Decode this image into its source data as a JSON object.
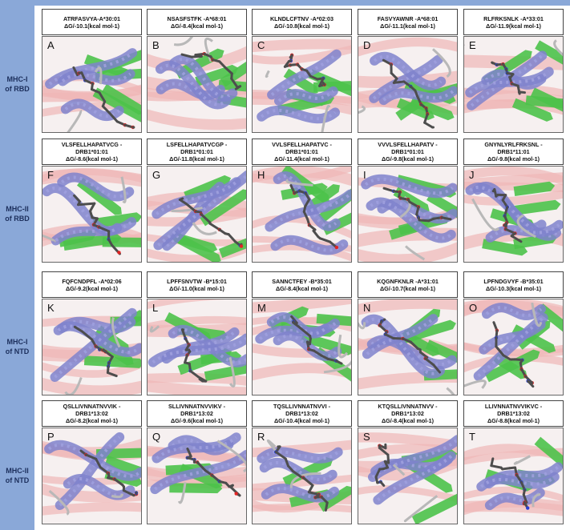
{
  "rows": [
    {
      "label": "MHC-I\nof RBD",
      "panels": [
        {
          "letter": "A",
          "lines": [
            "ATRFASVYA-A*30:01",
            "ΔG/-10.1(kcal  mol-1)"
          ]
        },
        {
          "letter": "B",
          "lines": [
            "NSASFSTFK -A*68:01",
            "ΔG/-8.4(kcal  mol-1)"
          ]
        },
        {
          "letter": "C",
          "lines": [
            "KLNDLCFTNV -A*02:03",
            "ΔG/-10.8(kcal  mol-1)"
          ]
        },
        {
          "letter": "D",
          "lines": [
            "FASVYAWNR -A*68:01",
            "ΔG/-11.1(kcal  mol-1)"
          ]
        },
        {
          "letter": "E",
          "lines": [
            "RLFRKSNLK -A*33:01",
            "ΔG/-11.9(kcal  mol-1)"
          ]
        }
      ]
    },
    {
      "label": "MHC-II\nof RBD",
      "panels": [
        {
          "letter": "F",
          "lines": [
            "VLSFELLHAPATVCG  -",
            "DRB1*01:01",
            "ΔG/-8.6(kcal  mol-1)"
          ]
        },
        {
          "letter": "G",
          "lines": [
            "LSFELLHAPATVCGP  -",
            "DRB1*01:01",
            "ΔG/-11.8(kcal  mol-1)"
          ]
        },
        {
          "letter": "H",
          "lines": [
            "VVLSFELLHAPATVC  -",
            "DRB1*01:01",
            "ΔG/-11.4(kcal  mol-1)"
          ]
        },
        {
          "letter": "I",
          "lines": [
            "VVVLSFELLHAPATV  -",
            "DRB1*01:01",
            "ΔG/-9.8(kcal  mol-1)"
          ]
        },
        {
          "letter": "J",
          "lines": [
            "GNYNLYRLFRKSNL  -",
            "DRB1*11:01",
            "ΔG/-9.8(kcal  mol-1)"
          ]
        }
      ]
    },
    {
      "label": "MHC-I\nof NTD",
      "panels": [
        {
          "letter": "K",
          "lines": [
            "FQFCNDPFL  -A*02:06",
            "ΔG/-9.2(kcal  mol-1)"
          ]
        },
        {
          "letter": "L",
          "lines": [
            "LPFFSNVTW -B*15:01",
            "ΔG/-11.0(kcal  mol-1)"
          ]
        },
        {
          "letter": "M",
          "lines": [
            "SANNCTFEY -B*35:01",
            "ΔG/-8.4(kcal  mol-1)"
          ]
        },
        {
          "letter": "N",
          "lines": [
            "KQGNFKNLR  -A*31:01",
            "ΔG/-10.7(kcal  mol-1)"
          ]
        },
        {
          "letter": "O",
          "lines": [
            "LPFNDGVYF -B*35:01",
            "ΔG/-10.3(kcal  mol-1)"
          ]
        }
      ]
    },
    {
      "label": "MHC-II\nof NTD",
      "panels": [
        {
          "letter": "P",
          "lines": [
            "QSLLIVNNATNVVIK  -",
            "DRB1*13:02",
            "ΔG/-8.2(kcal  mol-1)"
          ]
        },
        {
          "letter": "Q",
          "lines": [
            "SLLIVNNATNVVIKV  -",
            "DRB1*13:02",
            "ΔG/-9.6(kcal  mol-1)"
          ]
        },
        {
          "letter": "R",
          "lines": [
            "TQSLLIVNNATNVVI  -",
            "DRB1*13:02",
            "ΔG/-10.4(kcal  mol-1)"
          ]
        },
        {
          "letter": "S",
          "lines": [
            "KTQSLLIVNNATNVV  -",
            "DRB1*13:02",
            "ΔG/-8.4(kcal  mol-1)"
          ]
        },
        {
          "letter": "T",
          "lines": [
            "LLIVNNATNVVIKVC  -",
            "DRB1*13:02",
            "ΔG/-8.8(kcal  mol-1)"
          ]
        }
      ]
    }
  ],
  "colors": {
    "sidebar": "#8aa8d8",
    "helix": "#7f82cc",
    "sheet": "#4cc24a",
    "shadow": "#efb6b6",
    "ligand": "#4d4d4d",
    "oxygen": "#e12424",
    "nitrogen": "#2a3fd6"
  }
}
